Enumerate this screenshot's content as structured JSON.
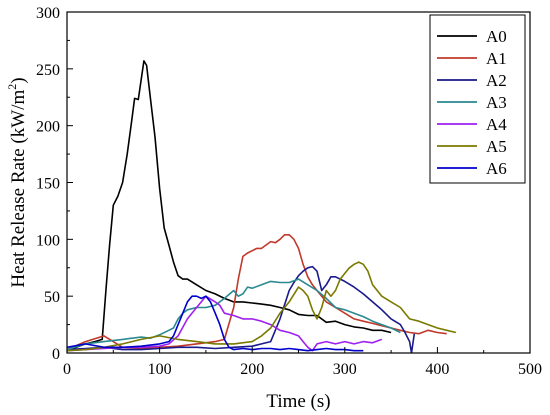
{
  "chart_data": {
    "type": "line",
    "title": "",
    "xlabel": "Time (s)",
    "ylabel_main": "Heat Release Rate (kW/m",
    "ylabel_sup": "2",
    "ylabel_close": ")",
    "xlim": [
      0,
      500
    ],
    "ylim": [
      0,
      300
    ],
    "xticks": [
      0,
      100,
      200,
      300,
      400,
      500
    ],
    "yticks": [
      0,
      50,
      100,
      150,
      200,
      250,
      300
    ],
    "grid": false,
    "legend": "top-right",
    "series": [
      {
        "name": "A0",
        "color": "#000000",
        "x": [
          0,
          10,
          20,
          30,
          38,
          42,
          46,
          50,
          55,
          60,
          65,
          70,
          73,
          77,
          80,
          83,
          86,
          90,
          95,
          100,
          105,
          110,
          115,
          120,
          125,
          130,
          140,
          150,
          160,
          170,
          180,
          190,
          200,
          210,
          220,
          230,
          240,
          250,
          260,
          270,
          280,
          290,
          300,
          310,
          320,
          330,
          340,
          350
        ],
        "y": [
          3,
          5,
          8,
          10,
          12,
          55,
          95,
          130,
          138,
          150,
          175,
          205,
          224,
          223,
          240,
          257,
          253,
          225,
          190,
          145,
          110,
          95,
          80,
          68,
          65,
          65,
          60,
          55,
          52,
          48,
          45,
          45,
          44,
          43,
          42,
          40,
          38,
          34,
          33,
          33,
          27,
          28,
          25,
          23,
          22,
          20,
          20,
          18
        ]
      },
      {
        "name": "A1",
        "color": "#c0392b",
        "x": [
          0,
          20,
          40,
          60,
          80,
          100,
          120,
          140,
          160,
          170,
          180,
          185,
          190,
          195,
          200,
          205,
          210,
          215,
          220,
          225,
          230,
          235,
          240,
          245,
          250,
          255,
          260,
          265,
          270,
          275,
          280,
          290,
          300,
          310,
          320,
          330,
          340,
          350,
          360,
          370,
          380,
          390,
          400,
          410
        ],
        "y": [
          3,
          10,
          15,
          5,
          4,
          5,
          6,
          8,
          10,
          12,
          40,
          65,
          85,
          88,
          90,
          92,
          92,
          95,
          98,
          97,
          100,
          104,
          104,
          100,
          92,
          78,
          67,
          60,
          55,
          50,
          45,
          40,
          35,
          30,
          28,
          26,
          24,
          22,
          20,
          18,
          17,
          20,
          18,
          17
        ]
      },
      {
        "name": "A2",
        "color": "#1a1a8c",
        "x": [
          0,
          20,
          40,
          60,
          80,
          100,
          120,
          140,
          160,
          180,
          200,
          210,
          220,
          230,
          240,
          245,
          250,
          255,
          260,
          265,
          270,
          275,
          280,
          285,
          290,
          300,
          310,
          320,
          330,
          340,
          350,
          360,
          365,
          370,
          372,
          375
        ],
        "y": [
          3,
          4,
          5,
          3,
          3,
          4,
          5,
          5,
          4,
          5,
          6,
          8,
          10,
          30,
          55,
          62,
          68,
          72,
          75,
          76,
          72,
          55,
          60,
          67,
          67,
          63,
          58,
          52,
          45,
          38,
          30,
          25,
          18,
          10,
          0,
          17
        ]
      },
      {
        "name": "A3",
        "color": "#2a8a8f",
        "x": [
          0,
          20,
          40,
          60,
          80,
          90,
          100,
          110,
          115,
          120,
          125,
          130,
          140,
          150,
          160,
          170,
          180,
          185,
          190,
          195,
          200,
          210,
          220,
          230,
          240,
          250,
          260,
          270,
          280,
          290,
          300,
          310,
          320,
          330,
          340,
          350,
          360
        ],
        "y": [
          3,
          8,
          10,
          12,
          14,
          13,
          16,
          20,
          22,
          30,
          35,
          38,
          40,
          40,
          42,
          48,
          55,
          50,
          52,
          58,
          57,
          60,
          63,
          62,
          62,
          65,
          60,
          55,
          48,
          40,
          38,
          35,
          32,
          28,
          25,
          22,
          18
        ]
      },
      {
        "name": "A4",
        "color": "#a020f0",
        "x": [
          0,
          20,
          40,
          60,
          80,
          100,
          110,
          120,
          130,
          140,
          150,
          160,
          165,
          170,
          180,
          190,
          200,
          210,
          220,
          230,
          240,
          250,
          255,
          260,
          265,
          270,
          280,
          290,
          300,
          310,
          320,
          330,
          340
        ],
        "y": [
          2,
          3,
          4,
          5,
          5,
          6,
          8,
          15,
          30,
          40,
          50,
          45,
          42,
          35,
          33,
          30,
          30,
          28,
          25,
          20,
          18,
          15,
          10,
          5,
          2,
          8,
          10,
          8,
          10,
          8,
          10,
          9,
          12
        ]
      },
      {
        "name": "A5",
        "color": "#7a7a00",
        "x": [
          0,
          20,
          40,
          60,
          80,
          100,
          120,
          140,
          160,
          180,
          200,
          210,
          220,
          230,
          240,
          250,
          255,
          260,
          265,
          270,
          275,
          280,
          285,
          290,
          295,
          300,
          305,
          310,
          315,
          320,
          325,
          330,
          340,
          350,
          360,
          370,
          380,
          390,
          400,
          410,
          420
        ],
        "y": [
          2,
          3,
          5,
          8,
          12,
          15,
          12,
          10,
          8,
          8,
          10,
          15,
          22,
          35,
          45,
          58,
          55,
          50,
          38,
          30,
          40,
          55,
          50,
          55,
          65,
          70,
          75,
          78,
          80,
          78,
          72,
          60,
          50,
          45,
          40,
          30,
          28,
          25,
          22,
          20,
          18
        ]
      },
      {
        "name": "A6",
        "color": "#0000cc",
        "x": [
          0,
          20,
          40,
          60,
          80,
          100,
          110,
          115,
          120,
          125,
          130,
          135,
          140,
          145,
          150,
          155,
          160,
          165,
          170,
          175,
          180,
          190,
          200,
          210,
          220,
          230,
          240,
          250,
          260,
          270,
          280,
          290,
          300,
          310,
          320
        ],
        "y": [
          5,
          8,
          5,
          5,
          6,
          8,
          10,
          15,
          25,
          35,
          45,
          50,
          50,
          48,
          50,
          45,
          35,
          25,
          12,
          5,
          3,
          4,
          3,
          4,
          4,
          3,
          4,
          3,
          2,
          3,
          4,
          3,
          3,
          2,
          2
        ]
      }
    ]
  }
}
